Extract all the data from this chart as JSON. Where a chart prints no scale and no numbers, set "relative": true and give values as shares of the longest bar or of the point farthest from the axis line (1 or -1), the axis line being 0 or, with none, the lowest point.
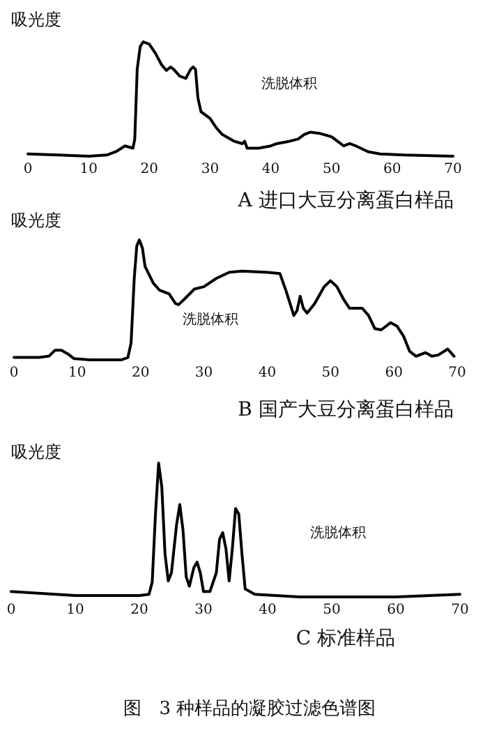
{
  "chart_data": [
    {
      "type": "line",
      "ylabel": "吸光度",
      "xlabel": "洗脱体积",
      "title": "A 进口大豆分离蛋白样品",
      "relative": true,
      "xlim": [
        0,
        70
      ],
      "xticks": [
        0,
        10,
        20,
        30,
        40,
        50,
        60,
        70
      ],
      "grid": false,
      "marker": "none",
      "line_style": "solid",
      "series": [
        {
          "color": "#000000",
          "x": [
            0,
            5,
            10,
            13,
            14.5,
            16,
            17.3,
            17.6,
            18,
            18.5,
            19,
            20,
            21,
            22,
            22.8,
            23.5,
            24,
            25,
            26,
            26.8,
            27.2,
            27.6,
            28,
            28.5,
            30,
            31,
            32,
            34,
            35.3,
            35.7,
            36.1,
            38,
            40,
            41,
            43,
            44.5,
            45.5,
            46.5,
            48,
            50,
            51,
            52,
            53,
            54,
            56,
            58,
            62,
            70
          ],
          "values": [
            0.02,
            0.01,
            0,
            0.01,
            0.04,
            0.09,
            0.07,
            0.15,
            0.76,
            0.96,
            1,
            0.98,
            0.9,
            0.8,
            0.75,
            0.78,
            0.76,
            0.7,
            0.68,
            0.76,
            0.78,
            0.76,
            0.51,
            0.39,
            0.33,
            0.25,
            0.19,
            0.13,
            0.11,
            0.13,
            0.07,
            0.07,
            0.09,
            0.11,
            0.13,
            0.15,
            0.19,
            0.21,
            0.2,
            0.17,
            0.13,
            0.09,
            0.11,
            0.09,
            0.04,
            0.02,
            0.01,
            0
          ]
        }
      ]
    },
    {
      "type": "line",
      "ylabel": "吸光度",
      "xlabel": "洗脱体积",
      "title": "B 国产大豆分离蛋白样品",
      "relative": true,
      "xlim": [
        0,
        70
      ],
      "xticks": [
        0,
        10,
        20,
        30,
        40,
        50,
        60,
        70
      ],
      "grid": false,
      "marker": "none",
      "line_style": "solid",
      "series": [
        {
          "color": "#000000",
          "x": [
            0,
            4,
            5.5,
            6.5,
            7.5,
            8.5,
            9.5,
            12,
            17,
            18,
            18.5,
            19,
            19.4,
            19.8,
            20.3,
            20.7,
            22,
            23,
            24.5,
            25.5,
            26,
            27,
            28.5,
            30,
            32,
            34,
            36,
            40,
            42,
            43,
            44.2,
            44.7,
            45.2,
            45.7,
            46.3,
            47.5,
            49,
            50,
            51,
            52,
            53,
            55,
            56,
            57,
            58,
            59.5,
            60.5,
            61.5,
            62.5,
            63.5,
            65,
            66,
            67,
            68.5,
            69.5
          ],
          "values": [
            0.02,
            0.02,
            0.03,
            0.08,
            0.08,
            0.05,
            0.01,
            0,
            0,
            0.02,
            0.14,
            0.68,
            0.95,
            1,
            0.93,
            0.78,
            0.64,
            0.58,
            0.55,
            0.47,
            0.46,
            0.51,
            0.59,
            0.61,
            0.68,
            0.73,
            0.74,
            0.73,
            0.72,
            0.57,
            0.37,
            0.41,
            0.53,
            0.43,
            0.39,
            0.47,
            0.61,
            0.66,
            0.61,
            0.51,
            0.43,
            0.43,
            0.37,
            0.26,
            0.25,
            0.31,
            0.28,
            0.2,
            0.07,
            0.03,
            0.06,
            0.03,
            0.04,
            0.09,
            0.03
          ]
        }
      ]
    },
    {
      "type": "line",
      "ylabel": "吸光度",
      "xlabel": "洗脱体积",
      "title": "C  标准样品",
      "relative": true,
      "xlim": [
        0,
        70
      ],
      "xticks": [
        0,
        10,
        20,
        30,
        40,
        50,
        60,
        70
      ],
      "grid": false,
      "marker": "none",
      "line_style": "solid",
      "annotations": [
        "图　3 种样品的凝胶过滤色谱图"
      ],
      "series": [
        {
          "color": "#000000",
          "x": [
            0,
            10,
            20,
            21.5,
            22,
            22.5,
            23,
            23.5,
            24,
            24.5,
            25,
            25.8,
            26.3,
            26.8,
            27.3,
            27.8,
            28.5,
            29,
            29.5,
            30,
            31,
            32,
            32.5,
            33,
            33.5,
            34,
            34.5,
            35,
            35.5,
            36,
            36.5,
            38,
            45,
            60,
            70
          ],
          "values": [
            0.04,
            0.01,
            0.01,
            0.02,
            0.11,
            0.61,
            1,
            0.82,
            0.32,
            0.12,
            0.18,
            0.54,
            0.69,
            0.5,
            0.15,
            0.08,
            0.22,
            0.26,
            0.18,
            0.04,
            0.04,
            0.18,
            0.43,
            0.48,
            0.36,
            0.12,
            0.36,
            0.66,
            0.62,
            0.32,
            0.06,
            0.02,
            0,
            0,
            0.02
          ]
        }
      ]
    }
  ]
}
